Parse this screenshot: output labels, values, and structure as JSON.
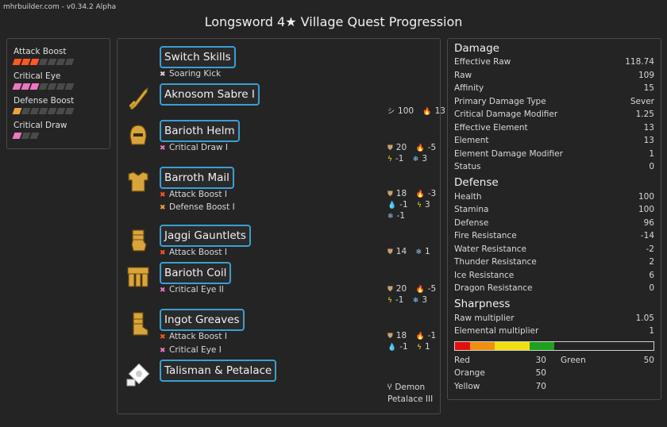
{
  "app": {
    "version_text": "mhrbuilder.com - v0.34.2 Alpha",
    "title": "Longsword 4★ Village Quest Progression"
  },
  "skills": [
    {
      "name": "Attack Boost",
      "level": 3,
      "max": 7,
      "color": "#ff5722"
    },
    {
      "name": "Critical Eye",
      "level": 3,
      "max": 7,
      "color": "#ec77c1"
    },
    {
      "name": "Defense Boost",
      "level": 1,
      "max": 7,
      "color": "#f0a040"
    },
    {
      "name": "Critical Draw",
      "level": 1,
      "max": 3,
      "color": "#ec77c1"
    }
  ],
  "build": {
    "switch_skills": {
      "label": "Switch Skills",
      "sub": "Soaring Kick"
    },
    "weapon": {
      "label": "Aknosom Sabre I",
      "sharpness_value": "100",
      "attack_value": "13"
    },
    "head": {
      "label": "Barioth Helm",
      "skills": [
        "Critical Draw I"
      ],
      "defense": "20",
      "fire": "-5",
      "thunder": "-1",
      "ice": "3"
    },
    "chest": {
      "label": "Barroth Mail",
      "skills": [
        "Attack Boost I",
        "Defense Boost I"
      ],
      "defense": "18",
      "fire": "-3",
      "water": "-1",
      "thunder": "3",
      "ice": "-1"
    },
    "arms": {
      "label": "Jaggi Gauntlets",
      "skills": [
        "Attack Boost I"
      ],
      "defense": "14",
      "ice": "1"
    },
    "waist": {
      "label": "Barioth Coil",
      "skills": [
        "Critical Eye II"
      ],
      "defense": "20",
      "fire": "-5",
      "thunder": "-1",
      "ice": "3"
    },
    "legs": {
      "label": "Ingot Greaves",
      "skills": [
        "Attack Boost I",
        "Critical Eye I"
      ],
      "defense": "18",
      "fire": "-1",
      "water": "-1",
      "thunder": "1"
    },
    "talisman": {
      "label": "Talisman & Petalace",
      "petalace_line1": "Demon",
      "petalace_line2": "Petalace III"
    }
  },
  "stats": {
    "damage_heading": "Damage",
    "damage": [
      {
        "label": "Effective Raw",
        "value": "118.74"
      },
      {
        "label": "Raw",
        "value": "109"
      },
      {
        "label": "Affinity",
        "value": "15"
      },
      {
        "label": "Primary Damage Type",
        "value": "Sever"
      },
      {
        "label": "Critical Damage Modifier",
        "value": "1.25"
      },
      {
        "label": "Effective Element",
        "value": "13"
      },
      {
        "label": "Element",
        "value": "13"
      },
      {
        "label": "Element Damage Modifier",
        "value": "1"
      },
      {
        "label": "Status",
        "value": "0"
      }
    ],
    "defense_heading": "Defense",
    "defense": [
      {
        "label": "Health",
        "value": "100"
      },
      {
        "label": "Stamina",
        "value": "100"
      },
      {
        "label": "Defense",
        "value": "96"
      },
      {
        "label": "Fire Resistance",
        "value": "-14"
      },
      {
        "label": "Water Resistance",
        "value": "-2"
      },
      {
        "label": "Thunder Resistance",
        "value": "2"
      },
      {
        "label": "Ice Resistance",
        "value": "6"
      },
      {
        "label": "Dragon Resistance",
        "value": "0"
      }
    ],
    "sharpness_heading": "Sharpness",
    "sharpness_rows": [
      {
        "label": "Raw multiplier",
        "value": "1.05"
      },
      {
        "label": "Elemental multiplier",
        "value": "1"
      }
    ],
    "sharpness": [
      {
        "label": "Red",
        "value": 30,
        "color": "#e01010"
      },
      {
        "label": "Orange",
        "value": 50,
        "color": "#f09010"
      },
      {
        "label": "Yellow",
        "value": 70,
        "color": "#f0e010"
      },
      {
        "label": "Green",
        "value": 50,
        "color": "#20a020"
      }
    ],
    "sharpness_max": 400
  }
}
